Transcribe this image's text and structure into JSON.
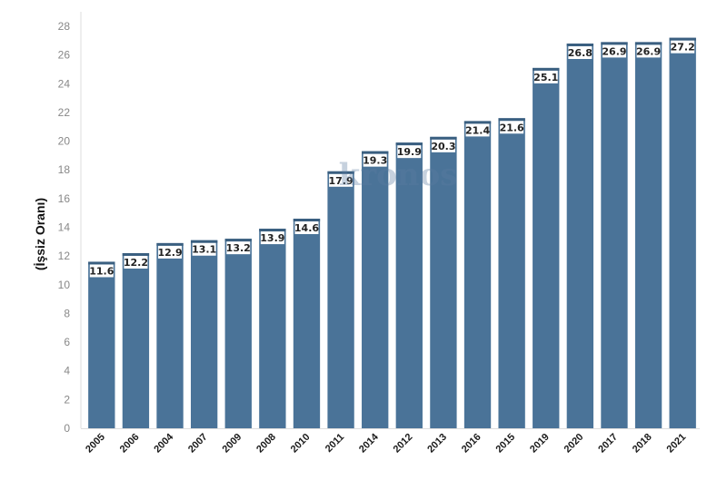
{
  "chart_data": {
    "type": "bar",
    "title": "",
    "xlabel": "",
    "ylabel": "(İşsiz Oranı)",
    "ylim": [
      0,
      28
    ],
    "yticks": [
      0,
      2,
      4,
      6,
      8,
      10,
      12,
      14,
      16,
      18,
      20,
      22,
      24,
      26,
      28
    ],
    "grid": false,
    "categories": [
      "2005",
      "2006",
      "2004",
      "2007",
      "2009",
      "2008",
      "2010",
      "2011",
      "2014",
      "2012",
      "2013",
      "2016",
      "2015",
      "2019",
      "2020",
      "2017",
      "2018",
      "2021"
    ],
    "values": [
      11.6,
      12.2,
      12.9,
      13.1,
      13.2,
      13.9,
      14.6,
      17.9,
      19.3,
      19.9,
      20.3,
      21.4,
      21.6,
      25.1,
      26.8,
      26.9,
      26.9,
      27.2
    ],
    "data_labels": [
      "11.6",
      "12.2",
      "12.9",
      "13.1",
      "13.2",
      "13.9",
      "14.6",
      "17.9",
      "19.3",
      "19.9",
      "20.3",
      "21.4",
      "21.6",
      "25.1",
      "26.8",
      "26.9",
      "26.9",
      "27.2"
    ],
    "bar_color": "#4a7398",
    "bar_cap_color": "#3a5f80",
    "watermark": "kronos"
  }
}
